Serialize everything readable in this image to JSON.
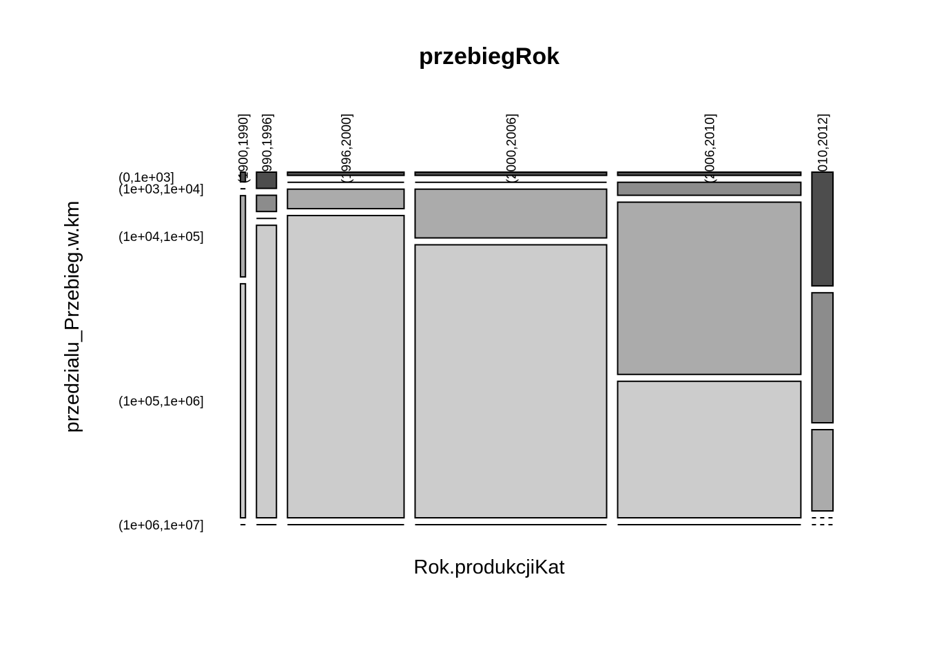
{
  "chart_data": {
    "type": "mosaic",
    "title": "przebiegRok",
    "xlabel": "Rok.produkcjiKat",
    "ylabel": "przedzialu_Przebieg.w.km",
    "x_categories": [
      "(1900,1990]",
      "(1990,1996]",
      "(1996,2000]",
      "(2000,2006]",
      "(2006,2010]",
      "(2010,2012]"
    ],
    "y_categories": [
      "(0,1e+03]",
      "(1e+03,1e+04]",
      "(1e+04,1e+05]",
      "(1e+05,1e+06]",
      "(1e+06,1e+07]"
    ],
    "column_shares": [
      0.009,
      0.036,
      0.21,
      0.345,
      0.33,
      0.038
    ],
    "cell_proportions": [
      [
        0.03,
        0.0,
        0.25,
        0.72,
        0.0
      ],
      [
        0.05,
        0.05,
        0.0,
        0.9,
        0.0
      ],
      [
        0.01,
        0.0,
        0.06,
        0.93,
        0.0
      ],
      [
        0.01,
        0.0,
        0.15,
        0.84,
        0.0
      ],
      [
        0.01,
        0.04,
        0.53,
        0.42,
        0.0
      ],
      [
        0.35,
        0.4,
        0.25,
        0.0,
        0.0
      ]
    ],
    "fill_colors": [
      "#4d4d4d",
      "#8c8c8c",
      "#ababab",
      "#cccccc",
      "#e6e6e6"
    ],
    "grid": false,
    "legend": "none"
  }
}
